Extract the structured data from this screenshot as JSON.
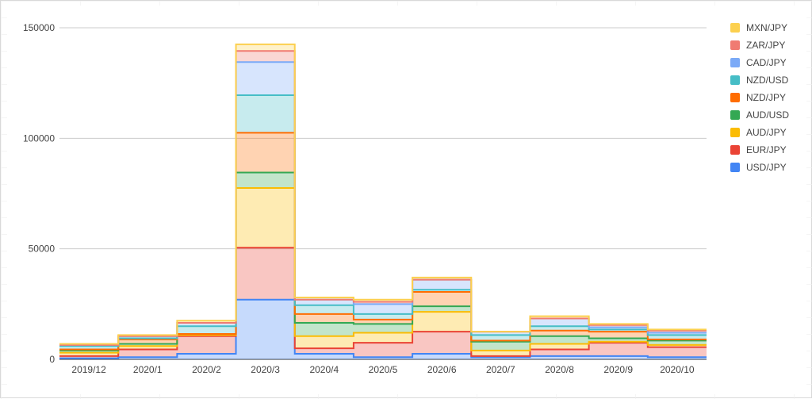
{
  "chart_data": {
    "type": "area",
    "step": true,
    "stacked": true,
    "categories": [
      "2019/12",
      "2020/1",
      "2020/2",
      "2020/3",
      "2020/4",
      "2020/5",
      "2020/6",
      "2020/7",
      "2020/8",
      "2020/9",
      "2020/10"
    ],
    "ylim": [
      0,
      150000
    ],
    "yticks": [
      "0",
      "50000",
      "100000",
      "150000"
    ],
    "grid": true,
    "legend_position": "right",
    "legend_order": [
      "MXN/JPY",
      "ZAR/JPY",
      "CAD/JPY",
      "NZD/USD",
      "NZD/JPY",
      "AUD/USD",
      "AUD/JPY",
      "EUR/JPY",
      "USD/JPY"
    ],
    "series": [
      {
        "name": "USD/JPY",
        "color": "#4285f4",
        "values": [
          500,
          1000,
          2500,
          27000,
          2500,
          1000,
          2500,
          1000,
          1500,
          1500,
          1000
        ]
      },
      {
        "name": "EUR/JPY",
        "color": "#ea4335",
        "values": [
          1000,
          3500,
          8000,
          23500,
          2500,
          6500,
          10000,
          500,
          3000,
          6000,
          4500
        ]
      },
      {
        "name": "AUD/JPY",
        "color": "#fbbc04",
        "values": [
          1500,
          1500,
          500,
          27000,
          5500,
          4500,
          9000,
          2500,
          2500,
          500,
          1000
        ]
      },
      {
        "name": "AUD/USD",
        "color": "#34a853",
        "values": [
          1000,
          1000,
          500,
          7000,
          6000,
          4000,
          2500,
          4000,
          3500,
          1500,
          2000
        ]
      },
      {
        "name": "NZD/JPY",
        "color": "#ff6d01",
        "values": [
          500,
          2000,
          0,
          18000,
          4000,
          2000,
          6500,
          500,
          2500,
          3000,
          500
        ]
      },
      {
        "name": "NZD/USD",
        "color": "#46bdc6",
        "values": [
          1500,
          500,
          3500,
          17000,
          4000,
          2500,
          1000,
          2500,
          2000,
          1000,
          2000
        ]
      },
      {
        "name": "CAD/JPY",
        "color": "#7baaf7",
        "values": [
          500,
          1000,
          1500,
          15000,
          2500,
          4500,
          4500,
          1500,
          3500,
          1000,
          1000
        ]
      },
      {
        "name": "ZAR/JPY",
        "color": "#f07b72",
        "values": [
          0,
          0,
          0,
          5000,
          0,
          1000,
          0,
          0,
          0,
          1000,
          1000
        ]
      },
      {
        "name": "MXN/JPY",
        "color": "#fcd04f",
        "values": [
          500,
          500,
          1000,
          3000,
          1000,
          1000,
          1000,
          0,
          1000,
          500,
          500
        ]
      }
    ]
  }
}
